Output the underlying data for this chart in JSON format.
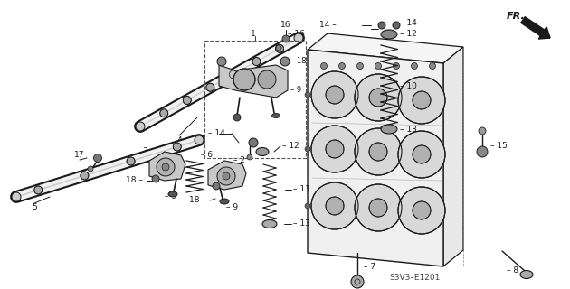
{
  "background_color": "#ffffff",
  "line_color": "#1a1a1a",
  "fig_width": 6.3,
  "fig_height": 3.2,
  "dpi": 100,
  "watermark": "S3V3-E1201",
  "direction_label": "FR."
}
